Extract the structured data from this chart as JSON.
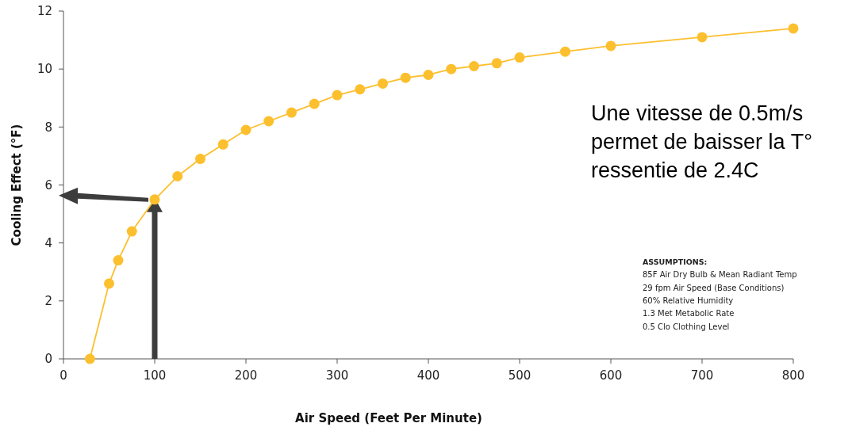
{
  "chart_data": {
    "type": "line",
    "xlabel": "Air Speed (Feet Per Minute)",
    "ylabel": "Cooling Effect (°F)",
    "x": [
      29,
      50,
      60,
      75,
      100,
      125,
      150,
      175,
      200,
      225,
      250,
      275,
      300,
      325,
      350,
      375,
      400,
      425,
      450,
      475,
      500,
      550,
      600,
      700,
      800
    ],
    "series": [
      {
        "color": "#fcbf2e",
        "values": [
          0,
          2.6,
          3.4,
          4.4,
          5.5,
          6.3,
          6.9,
          7.4,
          7.9,
          8.2,
          8.5,
          8.8,
          9.1,
          9.3,
          9.5,
          9.7,
          9.8,
          10.0,
          10.1,
          10.2,
          10.4,
          10.6,
          10.8,
          11.1,
          11.4
        ]
      }
    ],
    "xlim": [
      0,
      800
    ],
    "xticks": [
      0,
      100,
      200,
      300,
      400,
      500,
      600,
      700,
      800
    ],
    "ylim": [
      0,
      12
    ],
    "yticks": [
      0,
      2,
      4,
      6,
      8,
      10,
      12
    ],
    "marker": "circle",
    "line_style": "solid",
    "grid": false,
    "annotations": [
      "Une vitesse de 0.5m/s\npermet de baisser la T°\nressentie de 2.4C",
      "ASSUMPTIONS:\n85F Air Dry Bulb & Mean Radiant Temp\n29 fpm Air Speed (Base Conditions)\n60% Relative Humidity\n1.3 Met Metabolic Rate\n0.5 Clo Clothing Level"
    ]
  }
}
